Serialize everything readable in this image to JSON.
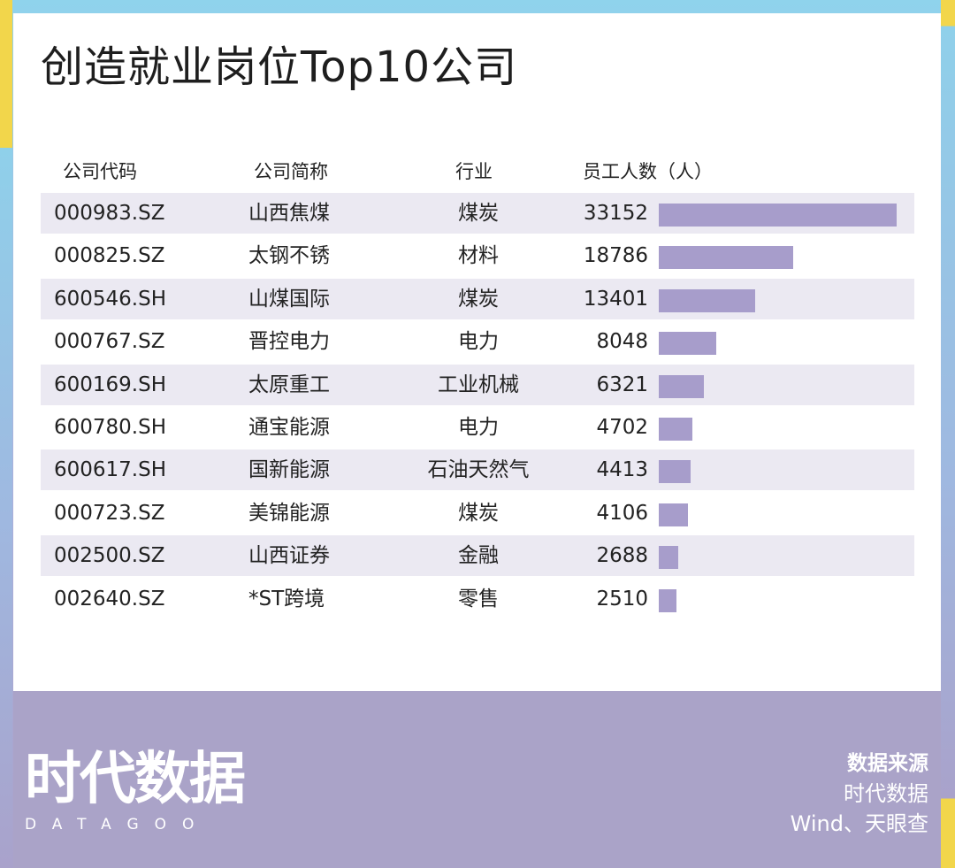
{
  "chart_data": {
    "type": "table",
    "title": "创造就业岗位Top10公司",
    "columns": [
      "公司代码",
      "公司简称",
      "行业",
      "员工人数（人）"
    ],
    "rows": [
      {
        "code": "000983.SZ",
        "name": "山西焦煤",
        "industry": "煤炭",
        "employees": 33152
      },
      {
        "code": "000825.SZ",
        "name": "太钢不锈",
        "industry": "材料",
        "employees": 18786
      },
      {
        "code": "600546.SH",
        "name": "山煤国际",
        "industry": "煤炭",
        "employees": 13401
      },
      {
        "code": "000767.SZ",
        "name": "晋控电力",
        "industry": "电力",
        "employees": 8048
      },
      {
        "code": "600169.SH",
        "name": "太原重工",
        "industry": "工业机械",
        "employees": 6321
      },
      {
        "code": "600780.SH",
        "name": "通宝能源",
        "industry": "电力",
        "employees": 4702
      },
      {
        "code": "600617.SH",
        "name": "国新能源",
        "industry": "石油天然气",
        "employees": 4413
      },
      {
        "code": "000723.SZ",
        "name": "美锦能源",
        "industry": "煤炭",
        "employees": 4106
      },
      {
        "code": "002500.SZ",
        "name": "山西证券",
        "industry": "金融",
        "employees": 2688
      },
      {
        "code": "002640.SZ",
        "name": "*ST跨境",
        "industry": "零售",
        "employees": 2510
      }
    ],
    "bar_color": "#a79dcb",
    "row_shade_color": "#ebe9f2"
  },
  "footer": {
    "logo_cn": "时代数据",
    "logo_en": "DATAGOO",
    "source_title": "数据来源",
    "source_lines": [
      "时代数据",
      "Wind、天眼查"
    ]
  }
}
